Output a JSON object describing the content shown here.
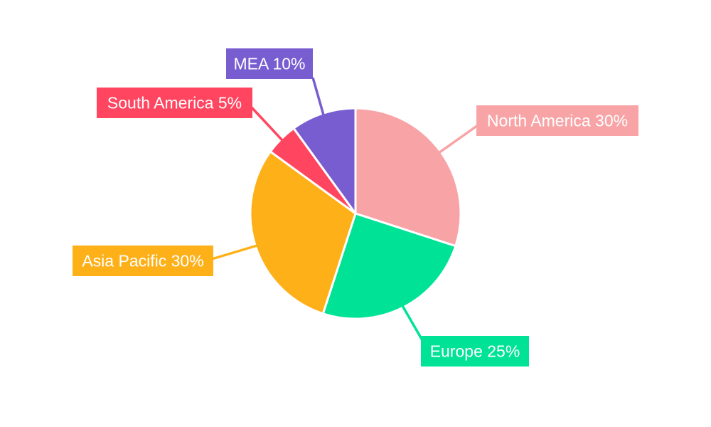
{
  "chart_data": {
    "type": "pie",
    "title": "",
    "slices": [
      {
        "name": "North America",
        "value": 30,
        "color": "#f8a4a6",
        "label": "North America 30%"
      },
      {
        "name": "Europe",
        "value": 25,
        "color": "#00e396",
        "label": "Europe 25%"
      },
      {
        "name": "Asia Pacific",
        "value": 30,
        "color": "#feb019",
        "label": "Asia Pacific 30%"
      },
      {
        "name": "South America",
        "value": 5,
        "color": "#ff4560",
        "label": "South America 5%"
      },
      {
        "name": "MEA",
        "value": 10,
        "color": "#775dd0",
        "label": "MEA 10%"
      }
    ],
    "start_angle": "12 o'clock",
    "direction": "clockwise",
    "legend": "none",
    "data_labels": "outside with leader lines"
  }
}
